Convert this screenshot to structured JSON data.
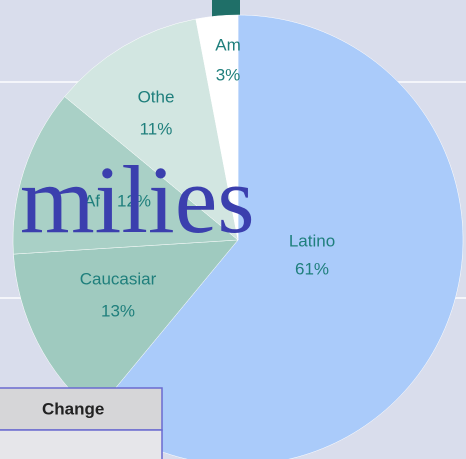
{
  "chart_data": {
    "type": "pie",
    "categories": [
      "Latino",
      "Caucasiar",
      "Af",
      "Othe",
      "Am"
    ],
    "values": [
      61,
      13,
      12,
      11,
      3
    ],
    "value_labels": [
      "61%",
      "13%",
      "12%",
      "11%",
      "3%"
    ],
    "colors": [
      "#aacbfa",
      "#9fcabf",
      "#a9d0c6",
      "#d2e6e1",
      "#ffffff"
    ]
  },
  "slide_title": "milies",
  "table": {
    "header": "Change"
  }
}
